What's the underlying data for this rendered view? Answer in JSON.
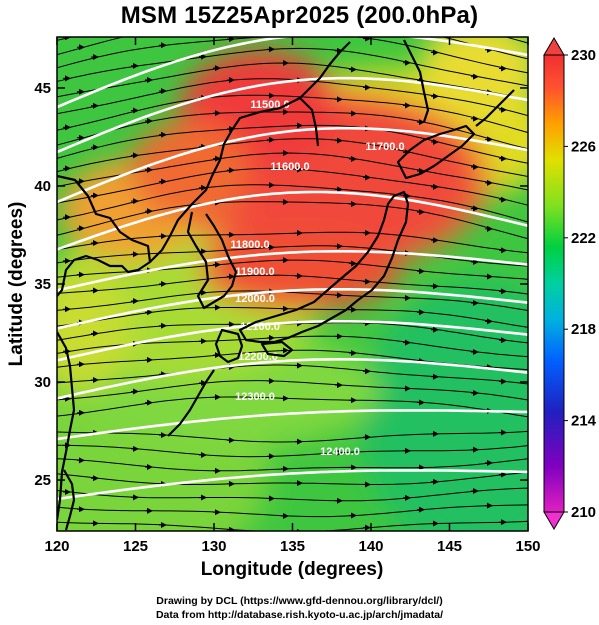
{
  "title": "MSM 15Z25Apr2025 (200.0hPa)",
  "map": {
    "x_axis": {
      "label": "Longitude (degrees)",
      "range": [
        120,
        150
      ],
      "ticks": [
        {
          "value": 120,
          "label": "120"
        },
        {
          "value": 125,
          "label": "125"
        },
        {
          "value": 130,
          "label": "130"
        },
        {
          "value": 135,
          "label": "135"
        },
        {
          "value": 140,
          "label": "140"
        },
        {
          "value": 145,
          "label": "145"
        },
        {
          "value": 150,
          "label": "150"
        }
      ]
    },
    "y_axis": {
      "label": "Latitude  (degrees)",
      "range": [
        22.4,
        47.6
      ],
      "ticks": [
        {
          "value": 25,
          "label": "25"
        },
        {
          "value": 30,
          "label": "30"
        },
        {
          "value": 35,
          "label": "35"
        },
        {
          "value": 40,
          "label": "40"
        },
        {
          "value": 45,
          "label": "45"
        }
      ]
    },
    "shading": "temperature",
    "contours": [
      {
        "label": "11500.0"
      },
      {
        "label": "11600.0"
      },
      {
        "label": "11700.0"
      },
      {
        "label": "11800.0"
      },
      {
        "label": "11900.0"
      },
      {
        "label": "12000.0"
      },
      {
        "label": "12100.0"
      },
      {
        "label": "12200.0"
      },
      {
        "label": "12300.0"
      },
      {
        "label": "12400.0"
      }
    ]
  },
  "colorbar": {
    "min": 210,
    "max": 230,
    "ticks": [
      {
        "value": 230,
        "label": "230"
      },
      {
        "value": 226,
        "label": "226"
      },
      {
        "value": 222,
        "label": "222"
      },
      {
        "value": 218,
        "label": "218"
      },
      {
        "value": 214,
        "label": "214"
      },
      {
        "value": 210,
        "label": "210"
      }
    ],
    "colors": [
      "#e020c0",
      "#8000c0",
      "#2020c0",
      "#0060ff",
      "#00b0e0",
      "#00d0a0",
      "#00d040",
      "#80e020",
      "#e0e000",
      "#ffa000",
      "#ff5030",
      "#f03030"
    ]
  },
  "credits": {
    "line1": "Drawing by DCL (https://www.gfd-dennou.org/library/dcl/)",
    "line2": "Data from http://database.rish.kyoto-u.ac.jp/arch/jmadata/"
  }
}
